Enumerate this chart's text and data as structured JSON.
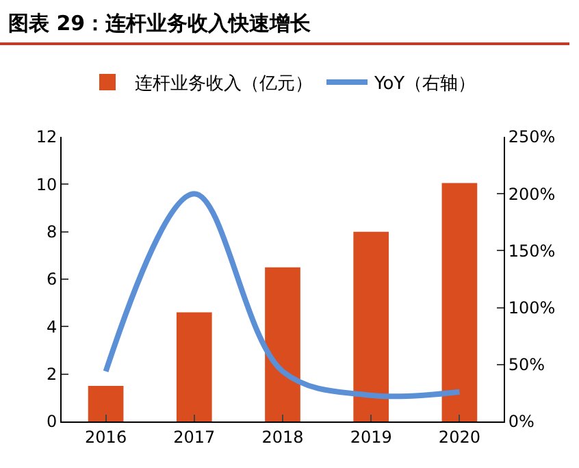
{
  "chart_data": {
    "type": "bar",
    "title": "图表 29：连杆业务收入快速增长",
    "categories": [
      "2016",
      "2017",
      "2018",
      "2019",
      "2020"
    ],
    "series": [
      {
        "name": "连杆业务收入（亿元）",
        "color": "#d94d1f",
        "values": [
          1.5,
          4.6,
          6.5,
          8.0,
          10.05
        ]
      },
      {
        "name": "YoY（右轴）",
        "type": "line",
        "axis": "y2",
        "color": "#5b8fd6",
        "values": [
          44,
          200,
          44,
          23,
          26
        ]
      }
    ],
    "ylim": [
      0,
      12
    ],
    "yticks": [
      0,
      2,
      4,
      6,
      8,
      10,
      12
    ],
    "y2lim": [
      0,
      250
    ],
    "y2ticks": [
      {
        "value": 0,
        "label": "0%"
      },
      {
        "value": 50,
        "label": "50%"
      },
      {
        "value": 100,
        "label": "100%"
      },
      {
        "value": 150,
        "label": "150%"
      },
      {
        "value": 200,
        "label": "200%"
      },
      {
        "value": 250,
        "label": "250%"
      }
    ],
    "legend": "top",
    "grid": false,
    "marker": "none",
    "line_style": "solid"
  }
}
